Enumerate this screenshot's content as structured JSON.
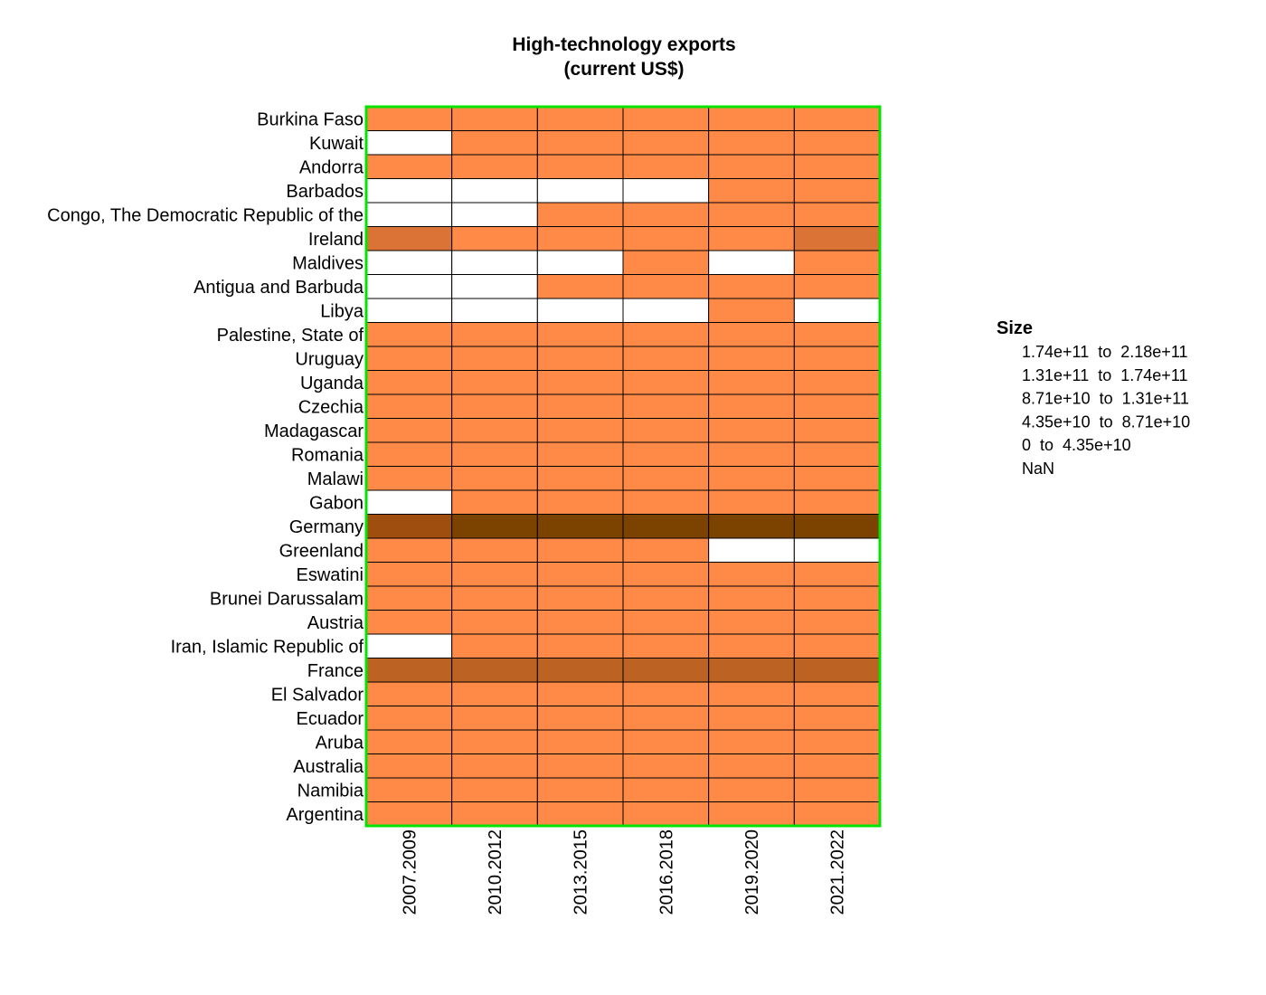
{
  "chart_data": {
    "type": "heatmap",
    "title": "High-technology exports",
    "subtitle": "(current US$)",
    "columns": [
      "2007.2009",
      "2010.2012",
      "2013.2015",
      "2016.2018",
      "2019.2020",
      "2021.2022"
    ],
    "rows": [
      "Burkina Faso",
      "Kuwait",
      "Andorra",
      "Barbados",
      "Congo, The Democratic Republic of the",
      "Ireland",
      "Maldives",
      "Antigua and Barbuda",
      "Libya",
      "Palestine, State of",
      "Uruguay",
      "Uganda",
      "Czechia",
      "Madagascar",
      "Romania",
      "Malawi",
      "Gabon",
      "Germany",
      "Greenland",
      "Eswatini",
      "Brunei Darussalam",
      "Austria",
      "Iran, Islamic Republic of",
      "France",
      "El Salvador",
      "Ecuador",
      "Aruba",
      "Australia",
      "Namibia",
      "Argentina"
    ],
    "cells": [
      [
        0,
        0,
        0,
        0,
        0,
        0
      ],
      [
        -1,
        0,
        0,
        0,
        0,
        0
      ],
      [
        0,
        0,
        0,
        0,
        0,
        0
      ],
      [
        -1,
        -1,
        -1,
        -1,
        0,
        0
      ],
      [
        -1,
        -1,
        0,
        0,
        0,
        0
      ],
      [
        1,
        0,
        0,
        0,
        0,
        1
      ],
      [
        -1,
        -1,
        -1,
        0,
        -1,
        0
      ],
      [
        -1,
        -1,
        0,
        0,
        0,
        0
      ],
      [
        -1,
        -1,
        -1,
        -1,
        0,
        -1
      ],
      [
        0,
        0,
        0,
        0,
        0,
        0
      ],
      [
        0,
        0,
        0,
        0,
        0,
        0
      ],
      [
        0,
        0,
        0,
        0,
        0,
        0
      ],
      [
        0,
        0,
        0,
        0,
        0,
        0
      ],
      [
        0,
        0,
        0,
        0,
        0,
        0
      ],
      [
        0,
        0,
        0,
        0,
        0,
        0
      ],
      [
        0,
        0,
        0,
        0,
        0,
        0
      ],
      [
        -1,
        0,
        0,
        0,
        0,
        0
      ],
      [
        3,
        4,
        4,
        4,
        4,
        4
      ],
      [
        0,
        0,
        0,
        0,
        -1,
        -1
      ],
      [
        0,
        0,
        0,
        0,
        0,
        0
      ],
      [
        0,
        0,
        0,
        0,
        0,
        0
      ],
      [
        0,
        0,
        0,
        0,
        0,
        0
      ],
      [
        -1,
        0,
        0,
        0,
        0,
        0
      ],
      [
        2,
        2,
        2,
        2,
        2,
        2
      ],
      [
        0,
        0,
        0,
        0,
        0,
        0
      ],
      [
        0,
        0,
        0,
        0,
        0,
        0
      ],
      [
        0,
        0,
        0,
        0,
        0,
        0
      ],
      [
        0,
        0,
        0,
        0,
        0,
        0
      ],
      [
        0,
        0,
        0,
        0,
        0,
        0
      ],
      [
        0,
        0,
        0,
        0,
        0,
        0
      ]
    ],
    "bin_colors": [
      "#ff8a47",
      "#db7336",
      "#bc6223",
      "#a04d10",
      "#7c4300"
    ],
    "nan_color": "#ffffff",
    "border_color": "#00e400",
    "grid_color": "#000000",
    "legend": {
      "title": "Size",
      "placement": "right",
      "items": [
        "1.74e+11  to  2.18e+11",
        "1.31e+11  to  1.74e+11",
        "8.71e+10  to  1.31e+11",
        "4.35e+10  to  8.71e+10",
        "0  to  4.35e+10",
        "NaN"
      ]
    }
  }
}
